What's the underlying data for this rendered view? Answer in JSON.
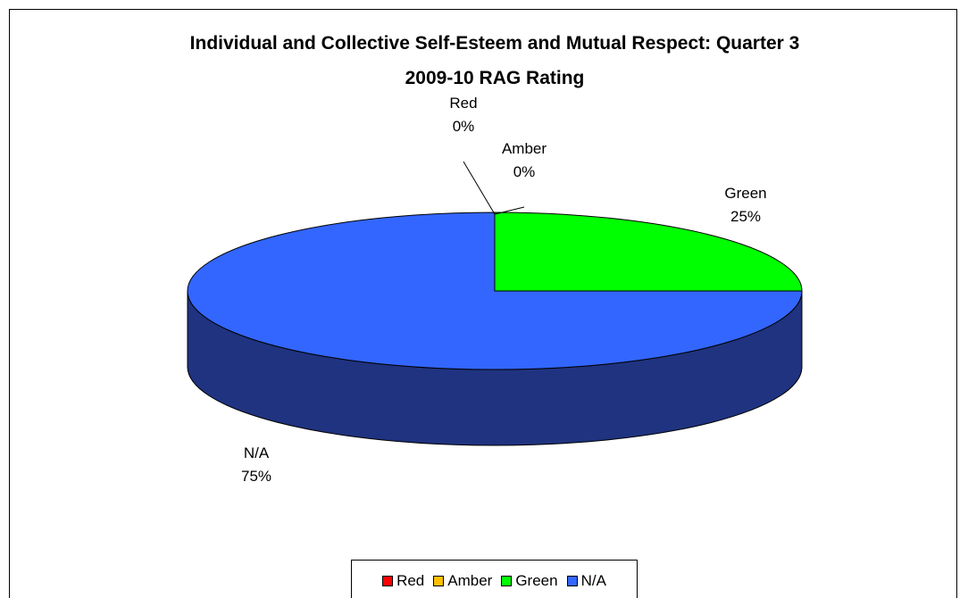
{
  "chart_data": {
    "type": "pie",
    "title_lines": [
      "Individual and Collective Self-Esteem and Mutual Respect: Quarter 3",
      "2009-10 RAG Rating"
    ],
    "slices": [
      {
        "name": "Red",
        "value": 0,
        "label": "0%",
        "color": "#FF0000"
      },
      {
        "name": "Amber",
        "value": 0,
        "label": "0%",
        "color": "#FFC000"
      },
      {
        "name": "Green",
        "value": 25,
        "label": "25%",
        "color": "#00FF00"
      },
      {
        "name": "N/A",
        "value": 75,
        "label": "75%",
        "color": "#3366FF"
      }
    ],
    "side_color": "#1F3380",
    "legend": {
      "position": "bottom",
      "items": [
        "Red",
        "Amber",
        "Green",
        "N/A"
      ]
    }
  }
}
